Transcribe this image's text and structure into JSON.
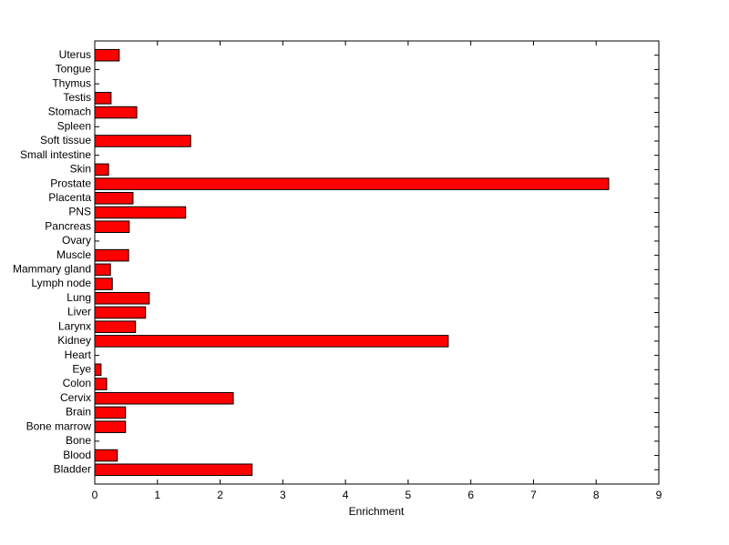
{
  "chart_data": {
    "type": "barh",
    "xlabel": "Enrichment",
    "categories": [
      "Bladder",
      "Blood",
      "Bone",
      "Bone marrow",
      "Brain",
      "Cervix",
      "Colon",
      "Eye",
      "Heart",
      "Kidney",
      "Larynx",
      "Liver",
      "Lung",
      "Lymph node",
      "Mammary gland",
      "Muscle",
      "Ovary",
      "Pancreas",
      "PNS",
      "Placenta",
      "Prostate",
      "Skin",
      "Small intestine",
      "Soft tissue",
      "Spleen",
      "Stomach",
      "Testis",
      "Thymus",
      "Tongue",
      "Uterus"
    ],
    "values": [
      2.51,
      0.36,
      0,
      0.49,
      0.49,
      2.21,
      0.19,
      0.1,
      0,
      5.64,
      0.65,
      0.81,
      0.87,
      0.28,
      0.25,
      0.54,
      0,
      0.55,
      1.45,
      0.61,
      8.2,
      0.22,
      0,
      1.53,
      0,
      0.67,
      0.26,
      0,
      0,
      0.39
    ],
    "color": "#ff0000",
    "xlim": [
      0,
      9
    ],
    "xticks": [
      0,
      1,
      2,
      3,
      4,
      5,
      6,
      7,
      8,
      9
    ]
  }
}
